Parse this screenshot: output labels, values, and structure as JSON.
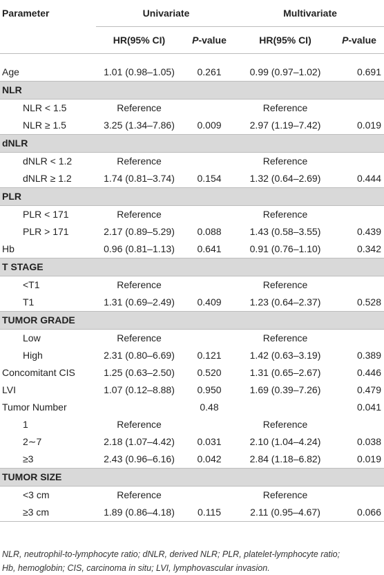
{
  "header": {
    "parameter": "Parameter",
    "univariate": "Univariate",
    "multivariate": "Multivariate",
    "hr_label": "HR(95% CI)",
    "p_label_italic": "P",
    "p_label_rest": "-value"
  },
  "rows": [
    {
      "type": "data",
      "param": "Age",
      "indent": false,
      "u_hr": "1.01 (0.98–1.05)",
      "u_p": "0.261",
      "m_hr": "0.99 (0.97–1.02)",
      "m_p": "0.691"
    },
    {
      "type": "section",
      "label": "NLR"
    },
    {
      "type": "data",
      "param": "NLR < 1.5",
      "indent": true,
      "u_hr": "Reference",
      "u_p": "",
      "m_hr": "Reference",
      "m_p": ""
    },
    {
      "type": "data",
      "param": "NLR ≥ 1.5",
      "indent": true,
      "u_hr": "3.25 (1.34–7.86)",
      "u_p": "0.009",
      "m_hr": "2.97 (1.19–7.42)",
      "m_p": "0.019"
    },
    {
      "type": "section",
      "label": "dNLR"
    },
    {
      "type": "data",
      "param": "dNLR < 1.2",
      "indent": true,
      "u_hr": "Reference",
      "u_p": "",
      "m_hr": "Reference",
      "m_p": ""
    },
    {
      "type": "data",
      "param": "dNLR ≥ 1.2",
      "indent": true,
      "u_hr": "1.74 (0.81–3.74)",
      "u_p": "0.154",
      "m_hr": "1.32 (0.64–2.69)",
      "m_p": "0.444"
    },
    {
      "type": "section",
      "label": "PLR"
    },
    {
      "type": "data",
      "param": "PLR < 171",
      "indent": true,
      "u_hr": "Reference",
      "u_p": "",
      "m_hr": "Reference",
      "m_p": ""
    },
    {
      "type": "data",
      "param": "PLR > 171",
      "indent": true,
      "u_hr": "2.17 (0.89–5.29)",
      "u_p": "0.088",
      "m_hr": "1.43 (0.58–3.55)",
      "m_p": "0.439"
    },
    {
      "type": "data",
      "param": "Hb",
      "indent": false,
      "u_hr": "0.96 (0.81–1.13)",
      "u_p": "0.641",
      "m_hr": "0.91 (0.76–1.10)",
      "m_p": "0.342"
    },
    {
      "type": "section",
      "label": "T STAGE"
    },
    {
      "type": "data",
      "param": "<T1",
      "indent": true,
      "u_hr": "Reference",
      "u_p": "",
      "m_hr": "Reference",
      "m_p": ""
    },
    {
      "type": "data",
      "param": "T1",
      "indent": true,
      "u_hr": "1.31 (0.69–2.49)",
      "u_p": "0.409",
      "m_hr": "1.23 (0.64–2.37)",
      "m_p": "0.528"
    },
    {
      "type": "section",
      "label": "TUMOR GRADE"
    },
    {
      "type": "data",
      "param": "Low",
      "indent": true,
      "u_hr": "Reference",
      "u_p": "",
      "m_hr": "Reference",
      "m_p": ""
    },
    {
      "type": "data",
      "param": "High",
      "indent": true,
      "u_hr": "2.31 (0.80–6.69)",
      "u_p": "0.121",
      "m_hr": "1.42 (0.63–3.19)",
      "m_p": "0.389"
    },
    {
      "type": "data",
      "param": "Concomitant CIS",
      "indent": false,
      "u_hr": "1.25 (0.63–2.50)",
      "u_p": "0.520",
      "m_hr": "1.31 (0.65–2.67)",
      "m_p": "0.446"
    },
    {
      "type": "data",
      "param": "LVI",
      "indent": false,
      "u_hr": "1.07 (0.12–8.88)",
      "u_p": "0.950",
      "m_hr": "1.69 (0.39–7.26)",
      "m_p": "0.479"
    },
    {
      "type": "data",
      "param": "Tumor Number",
      "indent": false,
      "u_hr": "",
      "u_p": "0.48",
      "m_hr": "",
      "m_p": "0.041"
    },
    {
      "type": "data",
      "param": "1",
      "indent": true,
      "u_hr": "Reference",
      "u_p": "",
      "m_hr": "Reference",
      "m_p": ""
    },
    {
      "type": "data",
      "param": "2∼7",
      "indent": true,
      "u_hr": "2.18 (1.07–4.42)",
      "u_p": "0.031",
      "m_hr": "2.10 (1.04–4.24)",
      "m_p": "0.038"
    },
    {
      "type": "data",
      "param": "≥3",
      "indent": true,
      "u_hr": "2.43 (0.96–6.16)",
      "u_p": "0.042",
      "m_hr": "2.84 (1.18–6.82)",
      "m_p": "0.019"
    },
    {
      "type": "section",
      "label": "TUMOR SIZE"
    },
    {
      "type": "data",
      "param": "<3 cm",
      "indent": true,
      "u_hr": "Reference",
      "u_p": "",
      "m_hr": "Reference",
      "m_p": ""
    },
    {
      "type": "data",
      "param": "≥3 cm",
      "indent": true,
      "u_hr": "1.89 (0.86–4.18)",
      "u_p": "0.115",
      "m_hr": "2.11 (0.95–4.67)",
      "m_p": "0.066"
    }
  ],
  "footnote": {
    "line1": "NLR, neutrophil-to-lymphocyte ratio; dNLR, derived NLR; PLR, platelet-lymphocyte ratio;",
    "line2": "Hb, hemoglobin; CIS, carcinoma in situ; LVI, lymphovascular invasion."
  }
}
